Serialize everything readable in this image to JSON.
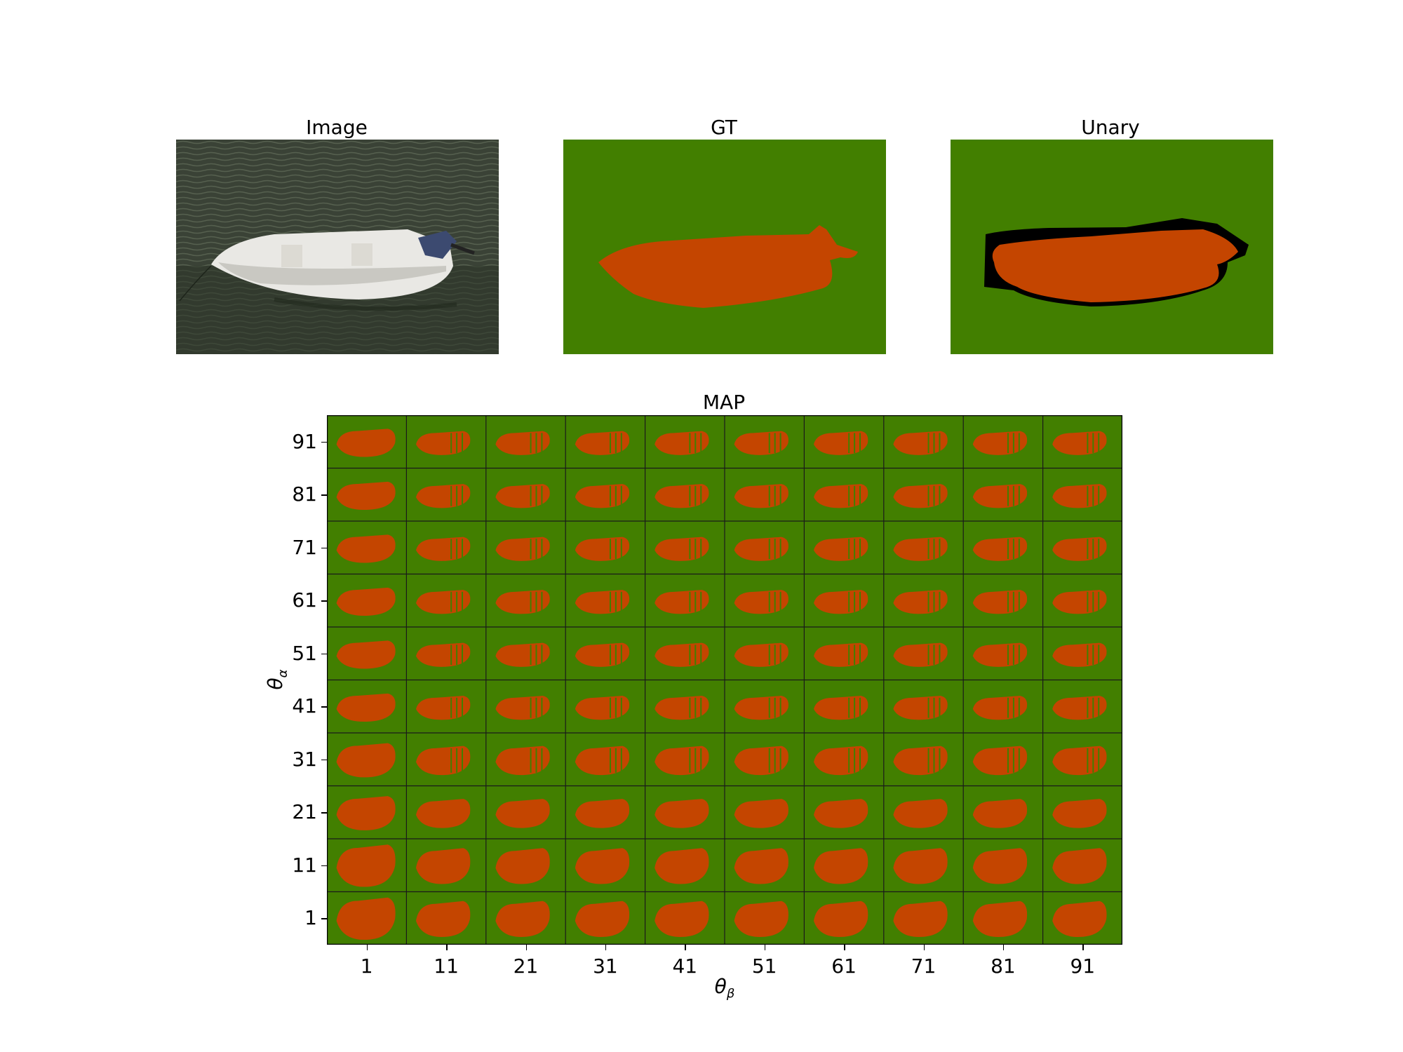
{
  "colors": {
    "background": "#427f00",
    "foreground": "#c44500",
    "void": "#000000",
    "water": "#3b4236",
    "boat": "#e6e6e4"
  },
  "panels": {
    "image_title": "Image",
    "gt_title": "GT",
    "unary_title": "Unary"
  },
  "map": {
    "title": "MAP",
    "x_axis_label": "θ",
    "x_axis_sub": "β",
    "y_axis_label": "θ",
    "y_axis_sub": "α",
    "x_ticks": [
      "1",
      "11",
      "21",
      "31",
      "41",
      "51",
      "61",
      "71",
      "81",
      "91"
    ],
    "y_ticks": [
      "91",
      "81",
      "71",
      "61",
      "51",
      "41",
      "31",
      "21",
      "11",
      "1"
    ]
  }
}
